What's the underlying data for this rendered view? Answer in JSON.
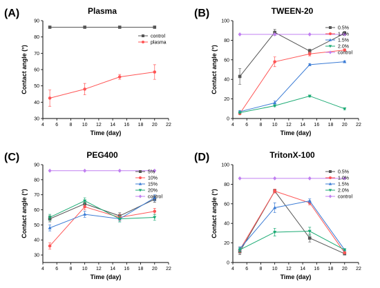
{
  "chart_data": [
    {
      "panel_label": "(A)",
      "title": "Plasma",
      "type": "line",
      "xlabel": "Time (day)",
      "ylabel": "Contact angle (°)",
      "xlim": [
        4,
        22
      ],
      "ylim": [
        30,
        90
      ],
      "xticks": [
        4,
        6,
        8,
        10,
        12,
        14,
        16,
        18,
        20,
        22
      ],
      "yticks": [
        30,
        40,
        50,
        60,
        70,
        80,
        90
      ],
      "x": [
        5,
        10,
        15,
        20
      ],
      "legend": "right",
      "series": [
        {
          "name": "control",
          "color": "#555555",
          "marker": "square",
          "values": [
            86,
            86,
            86,
            86
          ],
          "err": [
            0,
            0,
            0,
            0
          ]
        },
        {
          "name": "plasma",
          "color": "#ff5555",
          "marker": "circle",
          "values": [
            42.5,
            48,
            55.5,
            58.5
          ],
          "err": [
            5,
            3.5,
            1.5,
            4.5
          ]
        }
      ]
    },
    {
      "panel_label": "(B)",
      "title": "TWEEN-20",
      "type": "line",
      "xlabel": "Time (day)",
      "ylabel": "Contact angle (°)",
      "xlim": [
        4,
        22
      ],
      "ylim": [
        0,
        100
      ],
      "xticks": [
        4,
        6,
        8,
        10,
        12,
        14,
        16,
        18,
        20,
        22
      ],
      "yticks": [
        0,
        20,
        40,
        60,
        80,
        100
      ],
      "x": [
        5,
        10,
        15,
        20
      ],
      "legend": "right",
      "series": [
        {
          "name": "0.5%",
          "color": "#555555",
          "marker": "square",
          "values": [
            43,
            88,
            69,
            87
          ],
          "err": [
            8,
            3,
            2,
            2
          ]
        },
        {
          "name": "1.0%",
          "color": "#ff5555",
          "marker": "circle",
          "values": [
            5,
            58,
            66,
            70
          ],
          "err": [
            1,
            5,
            2,
            1
          ]
        },
        {
          "name": "1.5%",
          "color": "#3a7bd5",
          "marker": "triangle-up",
          "values": [
            7,
            16,
            55,
            58
          ],
          "err": [
            1,
            2,
            1,
            1
          ]
        },
        {
          "name": "2.0%",
          "color": "#1aaa73",
          "marker": "triangle-down",
          "values": [
            6,
            13,
            23,
            10
          ],
          "err": [
            1,
            1,
            1,
            1
          ]
        },
        {
          "name": "control",
          "color": "#c07ff0",
          "marker": "diamond",
          "values": [
            86,
            86,
            86,
            86
          ],
          "err": [
            0,
            0,
            0,
            0
          ]
        }
      ]
    },
    {
      "panel_label": "(C)",
      "title": "PEG400",
      "type": "line",
      "xlabel": "Time (day)",
      "ylabel": "Contact angle (°)",
      "xlim": [
        4,
        22
      ],
      "ylim": [
        25,
        90
      ],
      "xticks": [
        4,
        6,
        8,
        10,
        12,
        14,
        16,
        18,
        20,
        22
      ],
      "yticks": [
        30,
        40,
        50,
        60,
        70,
        80,
        90
      ],
      "x": [
        5,
        10,
        15,
        20
      ],
      "legend": "right",
      "series": [
        {
          "name": "5%",
          "color": "#555555",
          "marker": "square",
          "values": [
            54,
            64,
            56,
            67
          ],
          "err": [
            2,
            2,
            2,
            2
          ]
        },
        {
          "name": "10%",
          "color": "#ff5555",
          "marker": "circle",
          "values": [
            36,
            62,
            55,
            59
          ],
          "err": [
            2,
            2,
            2,
            2
          ]
        },
        {
          "name": "15%",
          "color": "#3a7bd5",
          "marker": "triangle-up",
          "values": [
            48,
            57,
            54,
            68
          ],
          "err": [
            2,
            2,
            2,
            2
          ]
        },
        {
          "name": "20%",
          "color": "#1aaa73",
          "marker": "triangle-down",
          "values": [
            55,
            66,
            54,
            55
          ],
          "err": [
            2,
            2,
            2,
            2
          ]
        },
        {
          "name": "control",
          "color": "#c07ff0",
          "marker": "diamond",
          "values": [
            86,
            86,
            86,
            86
          ],
          "err": [
            0,
            0,
            0,
            0
          ]
        }
      ]
    },
    {
      "panel_label": "(D)",
      "title": "TritonX-100",
      "type": "line",
      "xlabel": "Time (day)",
      "ylabel": "Contact angle (°)",
      "xlim": [
        4,
        22
      ],
      "ylim": [
        0,
        100
      ],
      "xticks": [
        4,
        6,
        8,
        10,
        12,
        14,
        16,
        18,
        20,
        22
      ],
      "yticks": [
        0,
        20,
        40,
        60,
        80,
        100
      ],
      "x": [
        5,
        10,
        15,
        20
      ],
      "legend": "right",
      "series": [
        {
          "name": "0.5%",
          "color": "#555555",
          "marker": "square",
          "values": [
            11,
            73,
            25,
            9
          ],
          "err": [
            3,
            2,
            4,
            1
          ]
        },
        {
          "name": "1.0%",
          "color": "#ff5555",
          "marker": "circle",
          "values": [
            13,
            73,
            61,
            10
          ],
          "err": [
            3,
            2,
            2,
            1
          ]
        },
        {
          "name": "1.5%",
          "color": "#3a7bd5",
          "marker": "triangle-up",
          "values": [
            14,
            56,
            63,
            13
          ],
          "err": [
            2,
            5,
            2,
            1
          ]
        },
        {
          "name": "2.0%",
          "color": "#1aaa73",
          "marker": "triangle-down",
          "values": [
            13,
            31,
            32,
            13
          ],
          "err": [
            2,
            4,
            4,
            1
          ]
        },
        {
          "name": "control",
          "color": "#c07ff0",
          "marker": "diamond",
          "values": [
            86,
            86,
            86,
            86
          ],
          "err": [
            0,
            0,
            0,
            0
          ]
        }
      ]
    }
  ]
}
